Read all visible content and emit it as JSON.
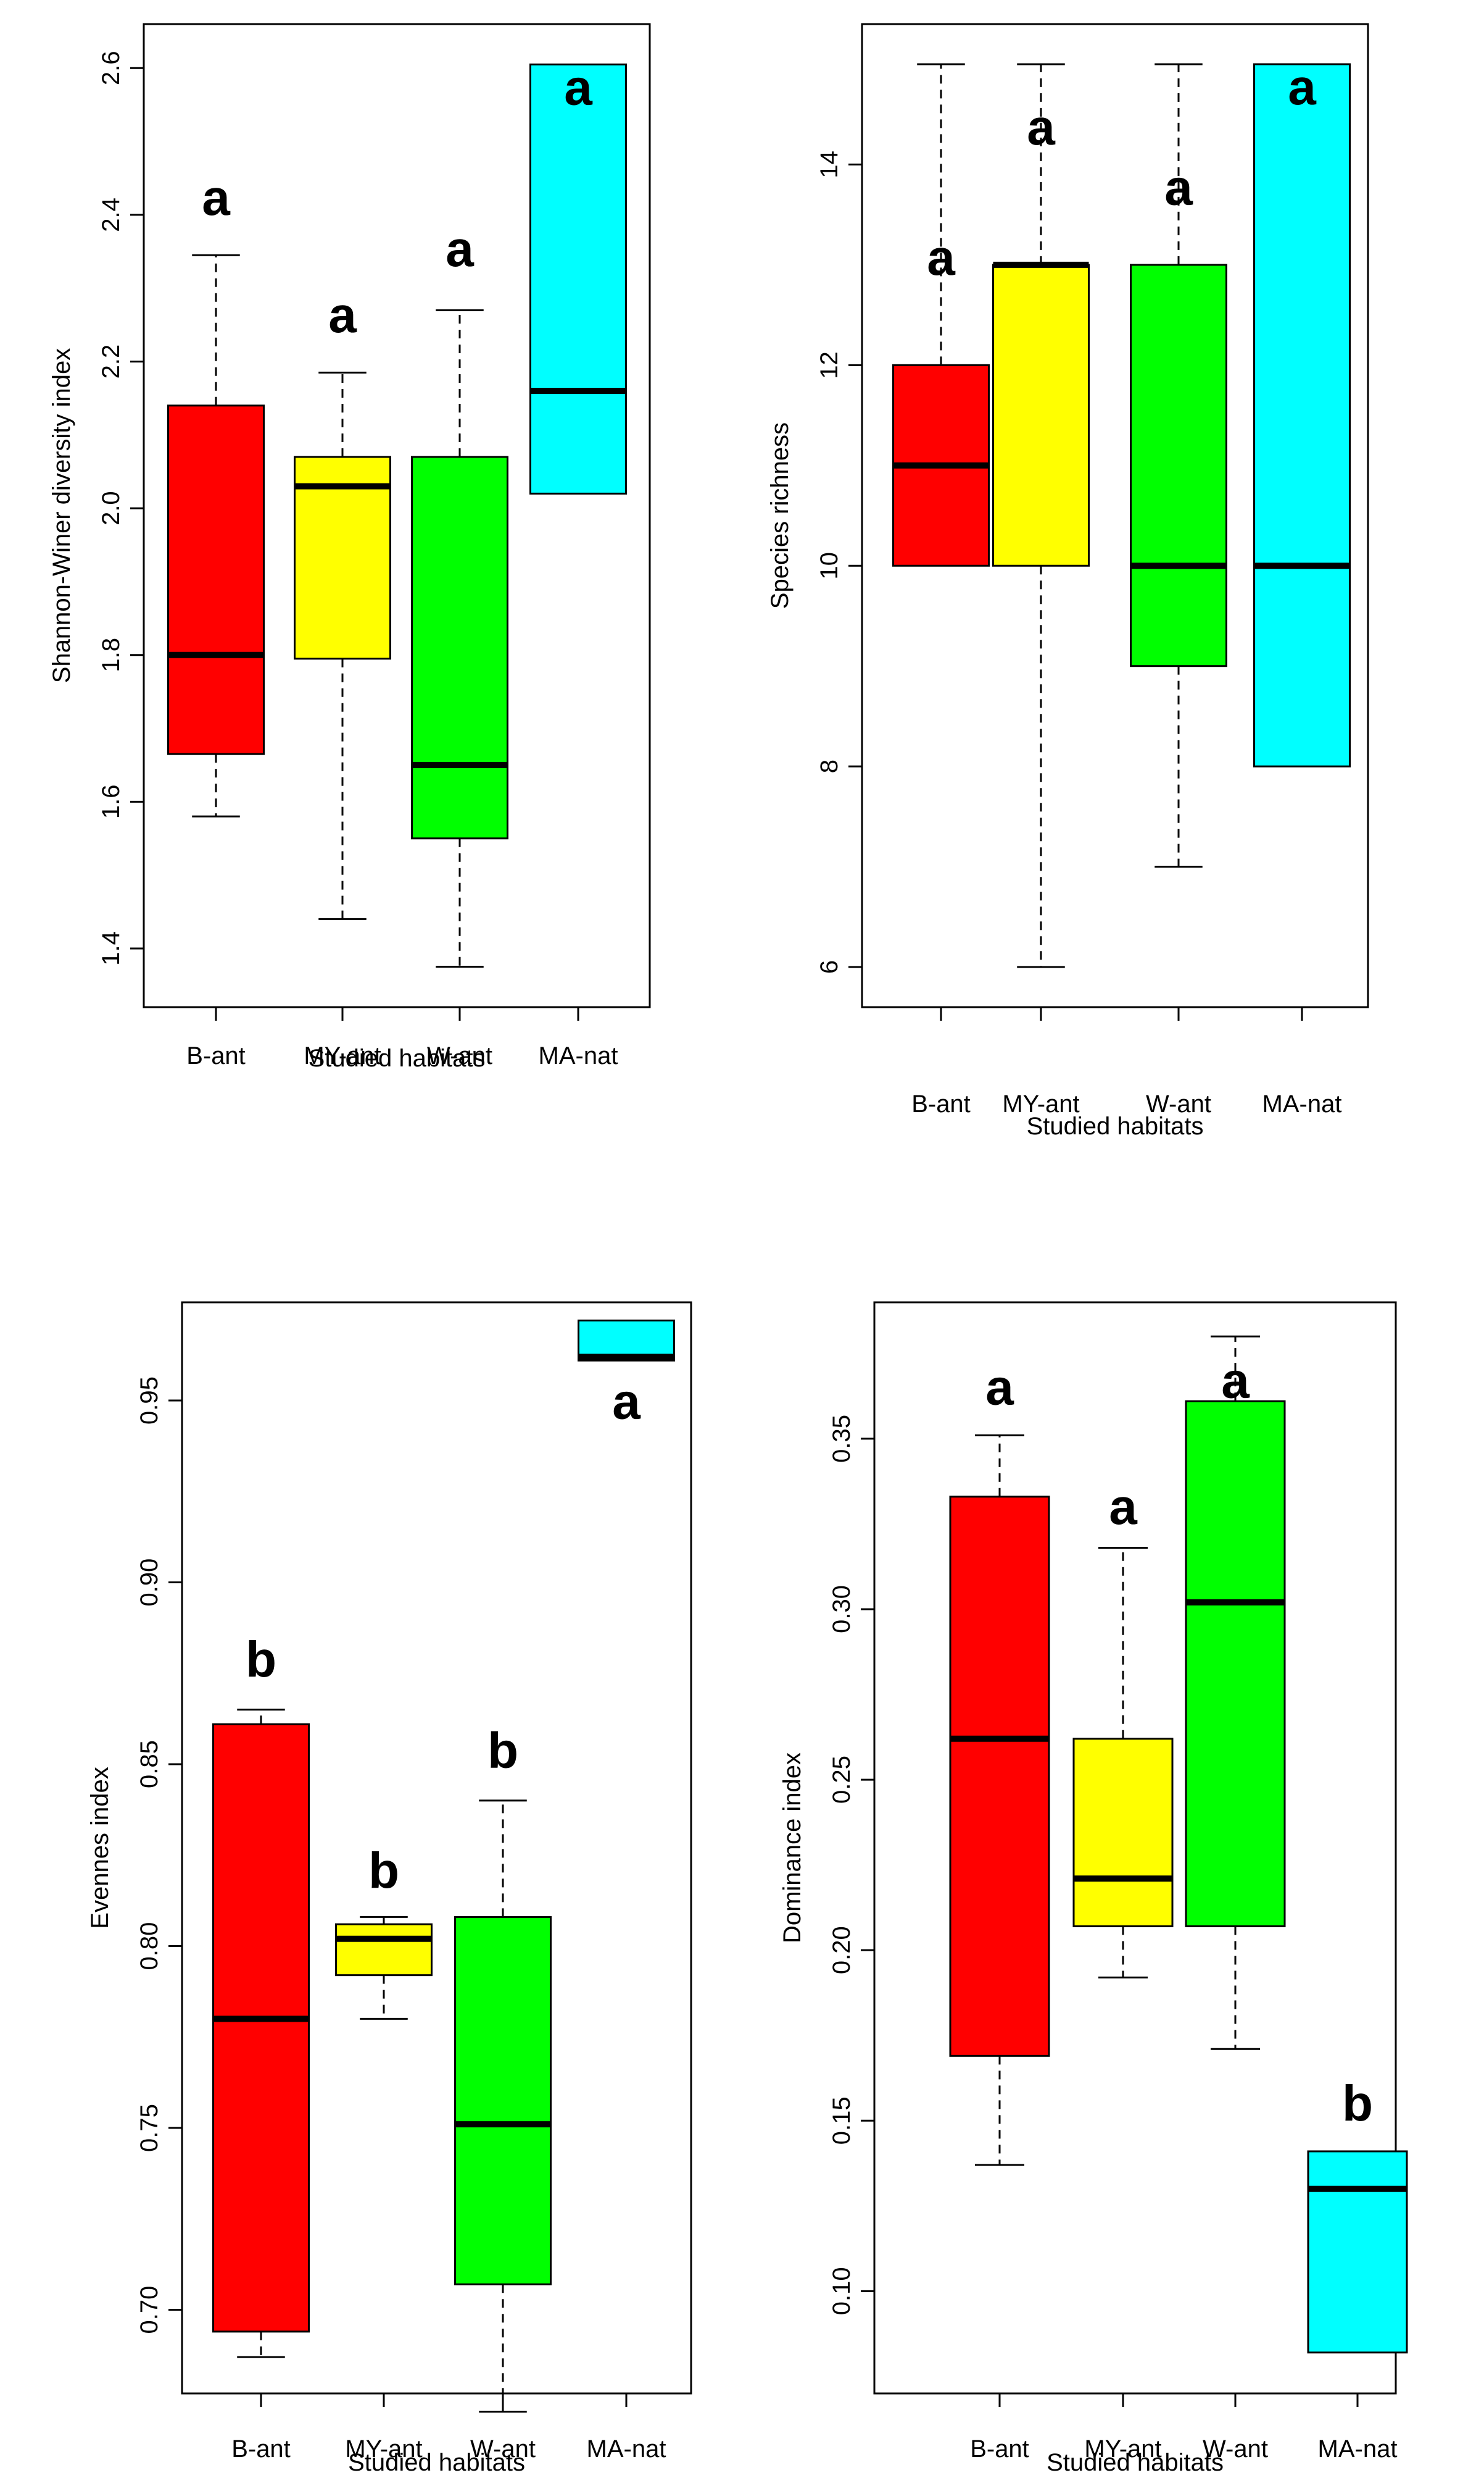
{
  "chart_data": [
    {
      "type": "boxplot",
      "id": "shannon",
      "title": "",
      "xlabel": "Studied habitats",
      "ylabel": "Shannon-Winer diversity index",
      "ylim": [
        1.32,
        2.66
      ],
      "yticks": [
        1.4,
        1.6,
        1.8,
        2.0,
        2.2,
        2.4,
        2.6
      ],
      "ytick_labels": [
        "1.4",
        "1.6",
        "1.8",
        "2.0",
        "2.2",
        "2.4",
        "2.6"
      ],
      "categories": [
        "B-ant",
        "MY-ant",
        "W-ant",
        "MA-nat"
      ],
      "boxes": [
        {
          "whisker_low": 1.58,
          "q1": 1.665,
          "median": 1.8,
          "q3": 2.14,
          "whisker_high": 2.345,
          "color": "#ff0000",
          "letter": "a",
          "letter_value": 2.4
        },
        {
          "whisker_low": 1.44,
          "q1": 1.795,
          "median": 2.03,
          "q3": 2.07,
          "whisker_high": 2.185,
          "color": "#ffff00",
          "letter": "a",
          "letter_value": 2.24
        },
        {
          "whisker_low": 1.375,
          "q1": 1.55,
          "median": 1.65,
          "q3": 2.07,
          "whisker_high": 2.27,
          "color": "#00ff00",
          "letter": "a",
          "letter_value": 2.33
        },
        {
          "whisker_low": 2.02,
          "q1": 2.02,
          "median": 2.16,
          "q3": 2.605,
          "whisker_high": 2.605,
          "color": "#00ffff",
          "letter": "a",
          "letter_value": 2.55
        }
      ]
    },
    {
      "type": "boxplot",
      "id": "richness",
      "title": "",
      "xlabel": "Studied habitats",
      "ylabel": "Species richness",
      "ylim": [
        5.6,
        15.4
      ],
      "yticks": [
        6,
        8,
        10,
        12,
        14
      ],
      "ytick_labels": [
        "6",
        "8",
        "10",
        "12",
        "14"
      ],
      "categories": [
        "B-ant",
        "MY-ant",
        "W-ant",
        "MA-nat"
      ],
      "boxes": [
        {
          "whisker_low": 10,
          "q1": 10,
          "median": 11,
          "q3": 12,
          "whisker_high": 15,
          "color": "#ff0000",
          "letter": "a",
          "letter_value": 12.9
        },
        {
          "whisker_low": 6,
          "q1": 10,
          "median": 13,
          "q3": 13,
          "whisker_high": 15,
          "color": "#ffff00",
          "letter": "a",
          "letter_value": 14.2
        },
        {
          "whisker_low": 7,
          "q1": 9,
          "median": 10,
          "q3": 13,
          "whisker_high": 15,
          "color": "#00ff00",
          "letter": "a",
          "letter_value": 13.6
        },
        {
          "whisker_low": 8,
          "q1": 8,
          "median": 10,
          "q3": 15,
          "whisker_high": 15,
          "color": "#00ffff",
          "letter": "a",
          "letter_value": 14.6
        }
      ]
    },
    {
      "type": "boxplot",
      "id": "evenness",
      "title": "",
      "xlabel": "Studied habitats",
      "ylabel": "Evennes index",
      "ylim": [
        0.677,
        0.977
      ],
      "yticks": [
        0.7,
        0.75,
        0.8,
        0.85,
        0.9,
        0.95
      ],
      "ytick_labels": [
        "0.70",
        "0.75",
        "0.80",
        "0.85",
        "0.90",
        "0.95"
      ],
      "categories": [
        "B-ant",
        "MY-ant",
        "W-ant",
        "MA-nat"
      ],
      "boxes": [
        {
          "whisker_low": 0.687,
          "q1": 0.694,
          "median": 0.78,
          "q3": 0.861,
          "whisker_high": 0.865,
          "color": "#ff0000",
          "letter": "b",
          "letter_value": 0.874
        },
        {
          "whisker_low": 0.78,
          "q1": 0.792,
          "median": 0.802,
          "q3": 0.806,
          "whisker_high": 0.808,
          "color": "#ffff00",
          "letter": "b",
          "letter_value": 0.816
        },
        {
          "whisker_low": 0.672,
          "q1": 0.707,
          "median": 0.751,
          "q3": 0.808,
          "whisker_high": 0.84,
          "color": "#00ff00",
          "letter": "b",
          "letter_value": 0.849
        },
        {
          "whisker_low": 0.961,
          "q1": 0.961,
          "median": 0.962,
          "q3": 0.972,
          "whisker_high": 0.972,
          "color": "#00ffff",
          "letter": "a",
          "letter_value": 0.945
        }
      ]
    },
    {
      "type": "boxplot",
      "id": "dominance",
      "title": "",
      "xlabel": "Studied habitats",
      "ylabel": "Dominance index",
      "ylim": [
        0.07,
        0.39
      ],
      "yticks": [
        0.1,
        0.15,
        0.2,
        0.25,
        0.3,
        0.35
      ],
      "ytick_labels": [
        "0.10",
        "0.15",
        "0.20",
        "0.25",
        "0.30",
        "0.35"
      ],
      "categories": [
        "B-ant",
        "MY-ant",
        "W-ant",
        "MA-nat"
      ],
      "boxes": [
        {
          "whisker_low": 0.137,
          "q1": 0.169,
          "median": 0.262,
          "q3": 0.333,
          "whisker_high": 0.351,
          "color": "#ff0000",
          "letter": "a",
          "letter_value": 0.36
        },
        {
          "whisker_low": 0.192,
          "q1": 0.207,
          "median": 0.221,
          "q3": 0.262,
          "whisker_high": 0.318,
          "color": "#ffff00",
          "letter": "a",
          "letter_value": 0.325
        },
        {
          "whisker_low": 0.171,
          "q1": 0.207,
          "median": 0.302,
          "q3": 0.361,
          "whisker_high": 0.38,
          "color": "#00ff00",
          "letter": "a",
          "letter_value": 0.362
        },
        {
          "whisker_low": 0.082,
          "q1": 0.082,
          "median": 0.13,
          "q3": 0.141,
          "whisker_high": 0.141,
          "color": "#00ffff",
          "letter": "b",
          "letter_value": 0.15
        }
      ]
    }
  ]
}
